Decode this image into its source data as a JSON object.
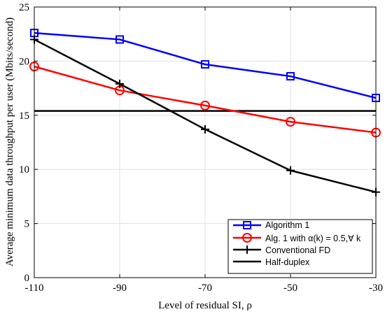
{
  "chart_data": {
    "type": "line",
    "xlabel": "Level of residual SI, ρ",
    "ylabel": "Average minimum data throughput per user (Mbits/second)",
    "xlim": [
      -110,
      -30
    ],
    "ylim": [
      0,
      25
    ],
    "x": [
      -110,
      -90,
      -70,
      -50,
      -30
    ],
    "x_ticks": [
      "-110",
      "-90",
      "-70",
      "-50",
      "-30"
    ],
    "y_ticks": [
      "0",
      "5",
      "10",
      "15",
      "20",
      "25"
    ],
    "grid": true,
    "legend_position": "bottom-right",
    "series": [
      {
        "name": "Algorithm 1",
        "color": "#0000ff",
        "marker": "square",
        "values": [
          22.6,
          22.0,
          19.7,
          18.6,
          16.6
        ]
      },
      {
        "name": "Alg. 1 with α(k) = 0.5,∀ k",
        "color": "#ff0000",
        "marker": "circle",
        "values": [
          19.5,
          17.3,
          15.9,
          14.4,
          13.4
        ]
      },
      {
        "name": "Conventional FD",
        "color": "#000000",
        "marker": "plus",
        "values": [
          22.0,
          17.9,
          13.7,
          9.9,
          7.9
        ]
      },
      {
        "name": "Half-duplex",
        "color": "#000000",
        "marker": "none",
        "values": [
          15.4,
          15.4,
          15.4,
          15.4,
          15.4
        ]
      }
    ]
  }
}
